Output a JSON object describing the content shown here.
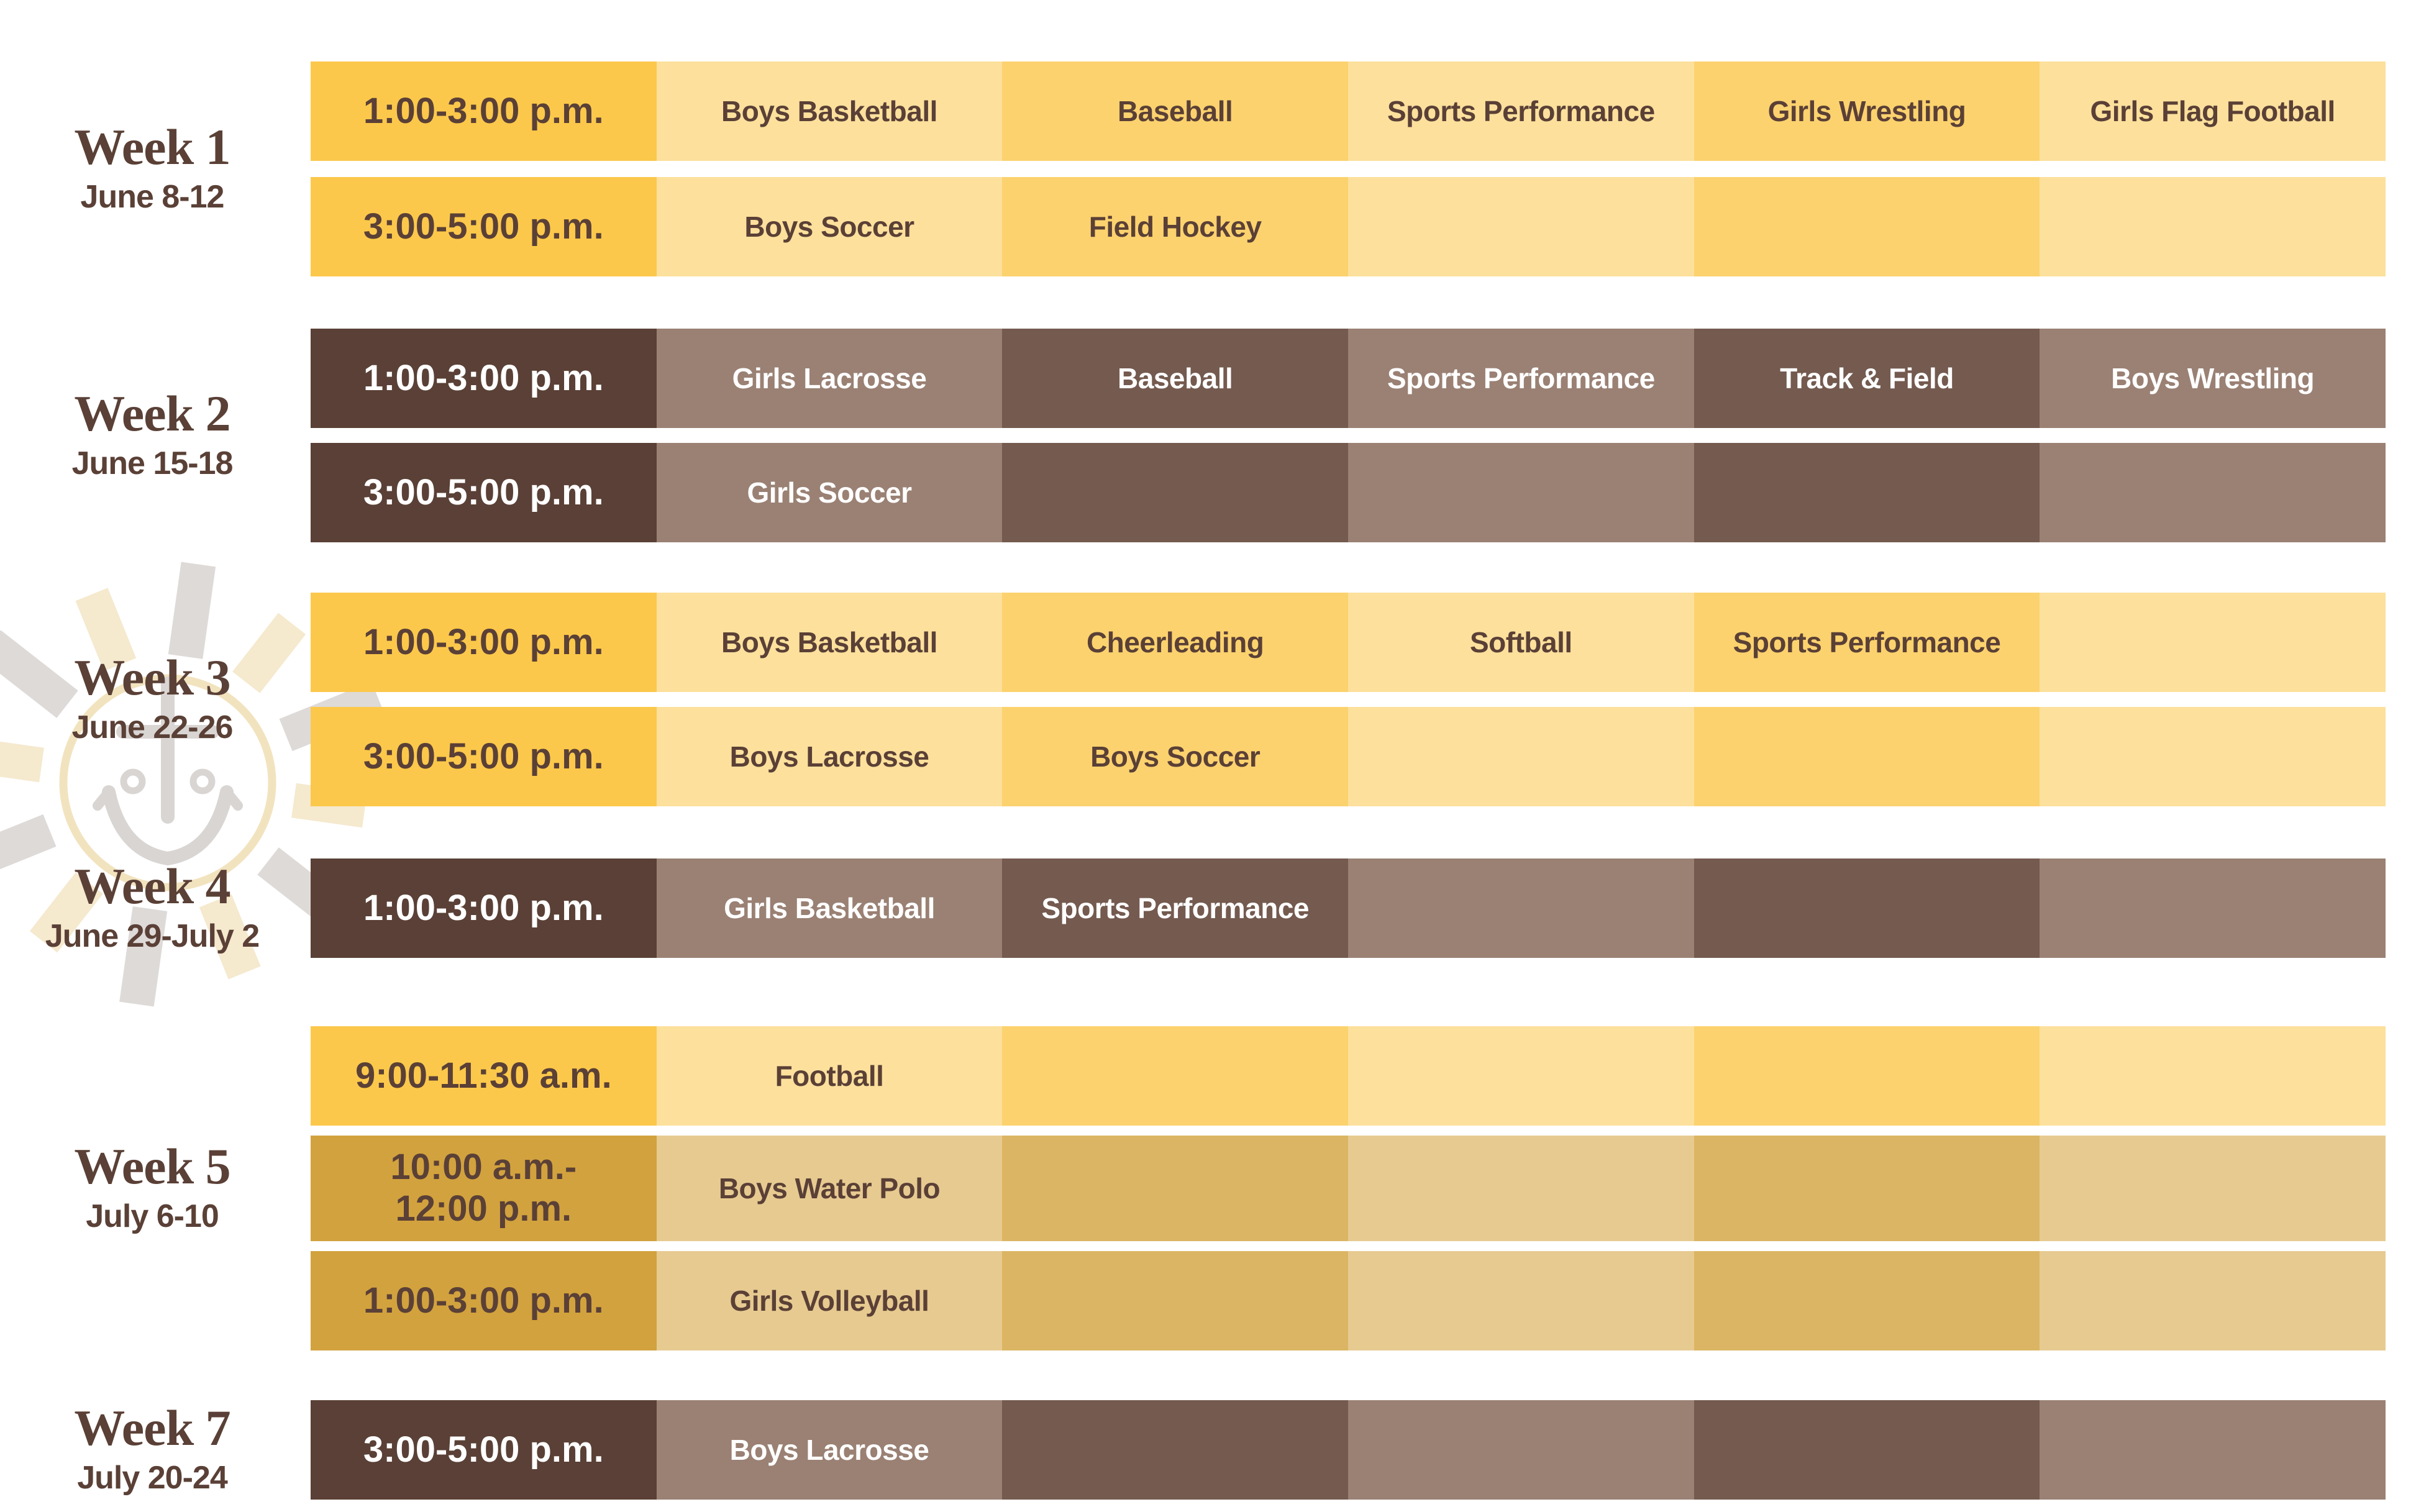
{
  "page": {
    "background": "#FFFFFF",
    "description": "Summer sports camp weekly schedule grid"
  },
  "palette": {
    "yellow_scheme": {
      "time_bg": "#FCC84B",
      "cell_light": "#FCE09C",
      "cell_dark": "#FCD26E",
      "text": "#5A4036"
    },
    "brown_scheme": {
      "time_bg": "#5A4036",
      "cell_light": "#9A8174",
      "cell_dark": "#745A4F",
      "text": "#FFFFFF"
    },
    "gold_scheme": {
      "time_bg": "#D2A23E",
      "cell_light": "#E6CA90",
      "cell_dark": "#DBB563",
      "text": "#5A4036"
    },
    "label_text": "#5A4036"
  },
  "watermark": {
    "icon": "sun-anchor-logo",
    "ray_color_cream": "#F5E9CE",
    "ray_color_gray": "#DEDAD8",
    "circle_color": "#F2E3BF",
    "anchor_color": "#D9D5D3"
  },
  "weeks": [
    {
      "title": "Week 1",
      "dates": "June 8-12",
      "rows": [
        {
          "scheme": "yellow",
          "time_lines": [
            "1:00-3:00 p.m."
          ],
          "sports": [
            "Boys Basketball",
            "Baseball",
            "Sports Performance",
            "Girls Wrestling",
            "Girls Flag Football"
          ]
        },
        {
          "scheme": "yellow",
          "time_lines": [
            "3:00-5:00 p.m."
          ],
          "sports": [
            "Boys Soccer",
            "Field Hockey",
            "",
            "",
            ""
          ]
        }
      ]
    },
    {
      "title": "Week 2",
      "dates": "June 15-18",
      "rows": [
        {
          "scheme": "brown",
          "time_lines": [
            "1:00-3:00 p.m."
          ],
          "sports": [
            "Girls Lacrosse",
            "Baseball",
            "Sports Performance",
            "Track & Field",
            "Boys Wrestling"
          ]
        },
        {
          "scheme": "brown",
          "time_lines": [
            "3:00-5:00 p.m."
          ],
          "sports": [
            "Girls Soccer",
            "",
            "",
            "",
            ""
          ]
        }
      ]
    },
    {
      "title": "Week 3",
      "dates": "June 22-26",
      "rows": [
        {
          "scheme": "yellow",
          "time_lines": [
            "1:00-3:00 p.m."
          ],
          "sports": [
            "Boys Basketball",
            "Cheerleading",
            "Softball",
            "Sports Performance",
            ""
          ]
        },
        {
          "scheme": "yellow",
          "time_lines": [
            "3:00-5:00 p.m."
          ],
          "sports": [
            "Boys Lacrosse",
            "Boys Soccer",
            "",
            "",
            ""
          ]
        }
      ]
    },
    {
      "title": "Week 4",
      "dates": "June 29-July 2",
      "rows": [
        {
          "scheme": "brown",
          "time_lines": [
            "1:00-3:00 p.m."
          ],
          "sports": [
            "Girls Basketball",
            "Sports Performance",
            "",
            "",
            ""
          ]
        }
      ]
    },
    {
      "title": "Week 5",
      "dates": "July 6-10",
      "rows": [
        {
          "scheme": "yellow",
          "time_lines": [
            "9:00-11:30 a.m."
          ],
          "sports": [
            "Football",
            "",
            "",
            "",
            ""
          ]
        },
        {
          "scheme": "gold",
          "time_lines": [
            "10:00 a.m.-",
            "12:00  p.m."
          ],
          "sports": [
            "Boys Water Polo",
            "",
            "",
            "",
            ""
          ]
        },
        {
          "scheme": "gold",
          "time_lines": [
            "1:00-3:00 p.m."
          ],
          "sports": [
            "Girls Volleyball",
            "",
            "",
            "",
            ""
          ]
        }
      ]
    },
    {
      "title": "Week 7",
      "dates": "July 20-24",
      "rows": [
        {
          "scheme": "brown",
          "time_lines": [
            "3:00-5:00 p.m."
          ],
          "sports": [
            "Boys Lacrosse",
            "",
            "",
            "",
            ""
          ]
        }
      ]
    }
  ]
}
